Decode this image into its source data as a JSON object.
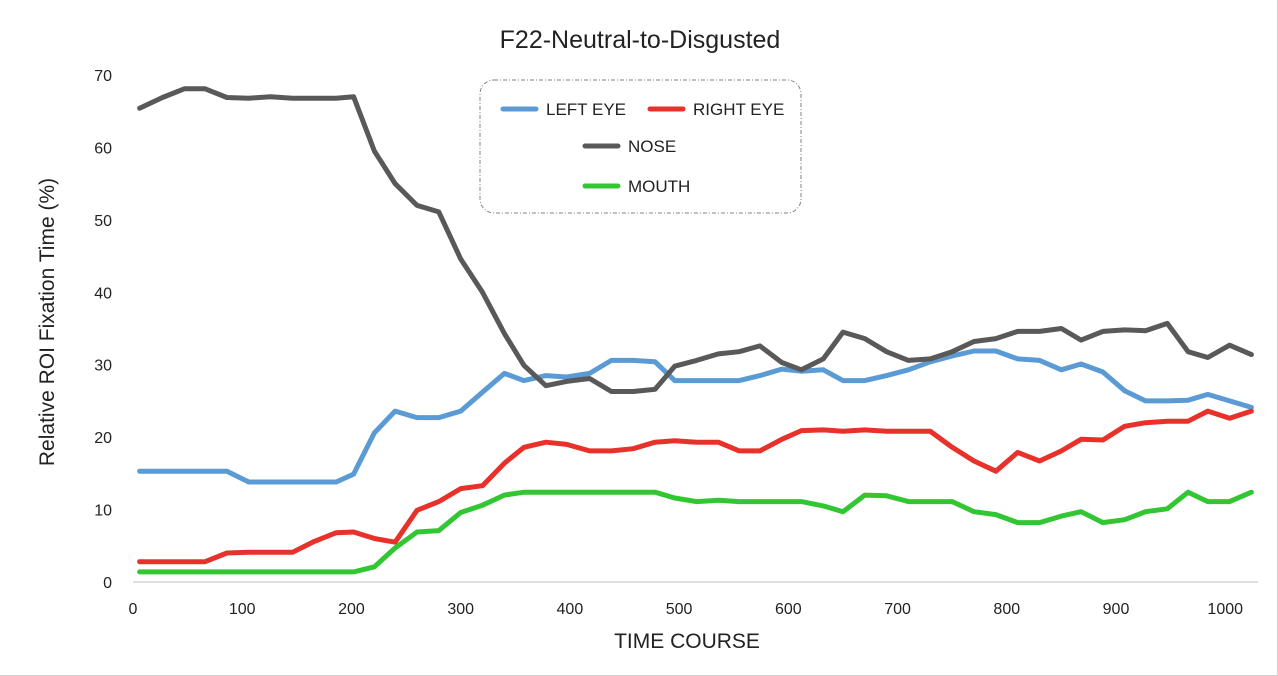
{
  "chart_data": {
    "type": "line",
    "title": "F22-Neutral-to-Disgusted",
    "xlabel": "TIME  COURSE",
    "ylabel": "Relative  ROI  Fixation  Time  (%)",
    "xlim": [
      0,
      1030
    ],
    "ylim": [
      0,
      70
    ],
    "xticks": [
      0,
      100,
      200,
      300,
      400,
      500,
      600,
      700,
      800,
      900,
      1000
    ],
    "yticks": [
      0,
      10,
      20,
      30,
      40,
      50,
      60,
      70
    ],
    "grid": false,
    "legend": "top-center",
    "x": [
      6,
      27,
      47,
      66,
      86,
      106,
      126,
      146,
      166,
      186,
      202,
      221,
      240,
      260,
      280,
      300,
      320,
      340,
      358,
      378,
      397,
      418,
      438,
      458,
      478,
      496,
      516,
      536,
      555,
      574,
      594,
      612,
      632,
      650,
      670,
      690,
      710,
      730,
      750,
      770,
      790,
      810,
      830,
      850,
      868,
      888,
      908,
      927,
      947,
      966,
      984,
      1004,
      1024
    ],
    "series": [
      {
        "name": "LEFT EYE",
        "color": "#5b9bd5",
        "values": [
          15.3,
          15.3,
          15.3,
          15.3,
          15.3,
          13.8,
          13.8,
          13.8,
          13.8,
          13.8,
          14.9,
          20.6,
          23.6,
          22.7,
          22.7,
          23.6,
          26.2,
          28.8,
          27.8,
          28.5,
          28.3,
          28.8,
          30.6,
          30.6,
          30.4,
          27.8,
          27.8,
          27.8,
          27.8,
          28.5,
          29.4,
          29.1,
          29.3,
          27.8,
          27.8,
          28.5,
          29.3,
          30.4,
          31.2,
          31.9,
          31.9,
          30.8,
          30.6,
          29.3,
          30.1,
          29.0,
          26.4,
          25.0,
          25.0,
          25.1,
          25.9,
          25.0,
          24.1
        ]
      },
      {
        "name": "RIGHT EYE",
        "color": "#e8312a",
        "values": [
          2.8,
          2.8,
          2.8,
          2.8,
          4.0,
          4.1,
          4.1,
          4.1,
          5.6,
          6.8,
          6.9,
          6.0,
          5.5,
          9.9,
          11.1,
          12.9,
          13.3,
          16.4,
          18.6,
          19.3,
          19.0,
          18.1,
          18.1,
          18.4,
          19.3,
          19.5,
          19.3,
          19.3,
          18.1,
          18.1,
          19.7,
          20.9,
          21.0,
          20.8,
          21.0,
          20.8,
          20.8,
          20.8,
          18.6,
          16.7,
          15.3,
          17.9,
          16.7,
          18.1,
          19.7,
          19.6,
          21.5,
          22.0,
          22.2,
          22.2,
          23.6,
          22.6,
          23.6
        ]
      },
      {
        "name": "NOSE",
        "color": "#595959",
        "values": [
          65.4,
          66.9,
          68.1,
          68.1,
          66.9,
          66.8,
          67.0,
          66.8,
          66.8,
          66.8,
          67.0,
          59.5,
          55.0,
          52.0,
          51.1,
          44.6,
          40.0,
          34.3,
          29.9,
          27.1,
          27.7,
          28.1,
          26.3,
          26.3,
          26.6,
          29.8,
          30.6,
          31.5,
          31.8,
          32.6,
          30.3,
          29.3,
          30.8,
          34.5,
          33.6,
          31.8,
          30.6,
          30.8,
          31.8,
          33.2,
          33.6,
          34.6,
          34.6,
          35.0,
          33.4,
          34.6,
          34.8,
          34.7,
          35.7,
          31.8,
          31.0,
          32.7,
          31.4
        ]
      },
      {
        "name": "MOUTH",
        "color": "#33c633",
        "values": [
          1.4,
          1.4,
          1.4,
          1.4,
          1.4,
          1.4,
          1.4,
          1.4,
          1.4,
          1.4,
          1.4,
          2.1,
          4.7,
          6.9,
          7.1,
          9.6,
          10.6,
          12.0,
          12.4,
          12.4,
          12.4,
          12.4,
          12.4,
          12.4,
          12.4,
          11.6,
          11.1,
          11.3,
          11.1,
          11.1,
          11.1,
          11.1,
          10.5,
          9.7,
          12.0,
          11.9,
          11.1,
          11.1,
          11.1,
          9.7,
          9.3,
          8.2,
          8.2,
          9.1,
          9.7,
          8.2,
          8.6,
          9.7,
          10.1,
          12.4,
          11.1,
          11.1,
          12.4
        ]
      }
    ]
  }
}
